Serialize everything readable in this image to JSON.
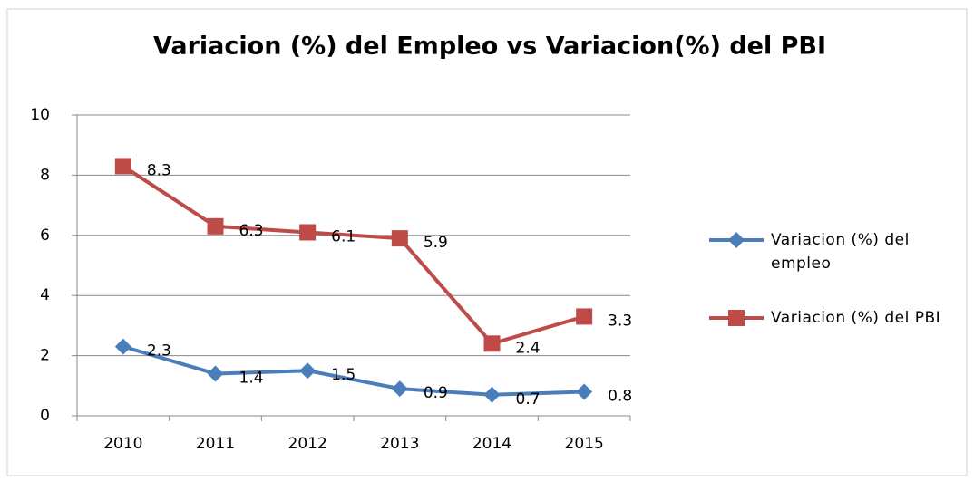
{
  "chart_data": {
    "type": "line",
    "title": "Variacion (%) del Empleo vs Variacion(%) del PBI",
    "categories": [
      "2010",
      "2011",
      "2012",
      "2013",
      "2014",
      "2015"
    ],
    "series": [
      {
        "name": "Variacion (%) del empleo",
        "color": "#4a7ebb",
        "marker": "diamond",
        "values": [
          2.3,
          1.4,
          1.5,
          0.9,
          0.7,
          0.8
        ]
      },
      {
        "name": "Variacion (%) del PBI",
        "color": "#be4b48",
        "marker": "square",
        "values": [
          8.3,
          6.3,
          6.1,
          5.9,
          2.4,
          3.3
        ]
      }
    ],
    "ylim": [
      0,
      10
    ],
    "yticks": [
      0,
      2,
      4,
      6,
      8,
      10
    ],
    "grid": true,
    "legend": "right"
  }
}
